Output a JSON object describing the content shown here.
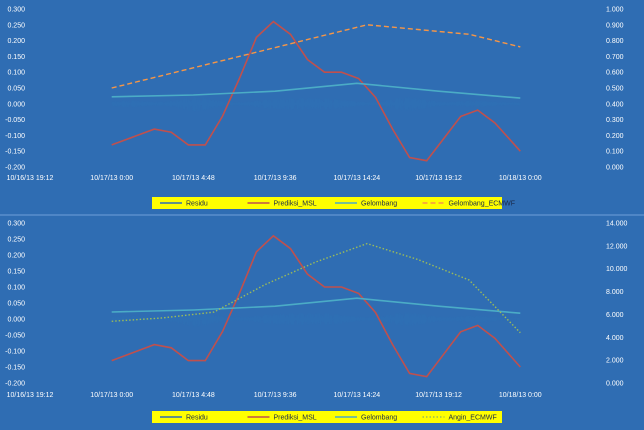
{
  "chart_data": [
    {
      "type": "line",
      "title": "",
      "xlabel": "",
      "ylabel": "",
      "x_ticks": [
        "10/16/13 19:12",
        "10/17/13 0:00",
        "10/17/13 4:48",
        "10/17/13 9:36",
        "10/17/13 14:24",
        "10/17/13 19:12",
        "10/18/13 0:00"
      ],
      "x_range": [
        "10/16/13 19:12",
        "10/18/13 4:48"
      ],
      "ylim_left": [
        -0.2,
        0.3
      ],
      "y_ticks_left": [
        "0.300",
        "0.250",
        "0.200",
        "0.150",
        "0.100",
        "0.050",
        "0.000",
        "-0.050",
        "-0.100",
        "-0.150",
        "-0.200"
      ],
      "ylim_right": [
        0,
        1
      ],
      "y_ticks_right": [
        "1.000",
        "0.900",
        "0.800",
        "0.700",
        "0.600",
        "0.500",
        "0.400",
        "0.300",
        "0.200",
        "0.100",
        "0.000"
      ],
      "grid": false,
      "legend_position": "bottom",
      "series": [
        {
          "name": "Residu",
          "color": "#2e6fb4",
          "axis": "left",
          "style": "noisy",
          "x": [
            "10/17/13 0:00",
            "10/18/13 0:00"
          ],
          "y": [
            0.0,
            0.0
          ]
        },
        {
          "name": "Prediksi_MSL",
          "color": "#c0504d",
          "axis": "left",
          "style": "solid",
          "x": [
            "10/17/13 0:00",
            "10/17/13 1:30",
            "10/17/13 2:30",
            "10/17/13 3:30",
            "10/17/13 4:30",
            "10/17/13 5:30",
            "10/17/13 6:30",
            "10/17/13 7:30",
            "10/17/13 8:30",
            "10/17/13 9:30",
            "10/17/13 10:30",
            "10/17/13 11:30",
            "10/17/13 12:30",
            "10/17/13 13:30",
            "10/17/13 14:30",
            "10/17/13 15:30",
            "10/17/13 16:30",
            "10/17/13 17:30",
            "10/17/13 18:30",
            "10/17/13 19:30",
            "10/17/13 20:30",
            "10/17/13 21:30",
            "10/17/13 22:30",
            "10/17/13 23:30",
            "10/18/13 0:00"
          ],
          "y": [
            -0.13,
            -0.1,
            -0.08,
            -0.09,
            -0.13,
            -0.13,
            -0.04,
            0.08,
            0.21,
            0.26,
            0.22,
            0.14,
            0.1,
            0.1,
            0.08,
            0.02,
            -0.08,
            -0.17,
            -0.18,
            -0.11,
            -0.04,
            -0.02,
            -0.06,
            -0.12,
            -0.15
          ]
        },
        {
          "name": "Gelombang",
          "color": "#4bacc6",
          "axis": "left",
          "style": "solid",
          "x": [
            "10/17/13 0:00",
            "10/17/13 4:48",
            "10/17/13 9:36",
            "10/17/13 14:24",
            "10/17/13 19:12",
            "10/18/13 0:00"
          ],
          "y": [
            0.022,
            0.028,
            0.04,
            0.065,
            0.04,
            0.018
          ]
        },
        {
          "name": "Gelombang_ECMWF",
          "color": "#f79646",
          "axis": "right",
          "style": "dashed",
          "x": [
            "10/17/13 0:00",
            "10/17/13 3:00",
            "10/17/13 6:00",
            "10/17/13 9:00",
            "10/17/13 12:00",
            "10/17/13 15:00",
            "10/17/13 18:00",
            "10/17/13 21:00",
            "10/18/13 0:00"
          ],
          "y": [
            0.5,
            0.58,
            0.66,
            0.74,
            0.82,
            0.9,
            0.87,
            0.84,
            0.76
          ]
        }
      ]
    },
    {
      "type": "line",
      "title": "",
      "xlabel": "",
      "ylabel": "",
      "x_ticks": [
        "10/16/13 19:12",
        "10/17/13 0:00",
        "10/17/13 4:48",
        "10/17/13 9:36",
        "10/17/13 14:24",
        "10/17/13 19:12",
        "10/18/13 0:00"
      ],
      "x_range": [
        "10/16/13 19:12",
        "10/18/13 4:48"
      ],
      "ylim_left": [
        -0.2,
        0.3
      ],
      "y_ticks_left": [
        "0.300",
        "0.250",
        "0.200",
        "0.150",
        "0.100",
        "0.050",
        "0.000",
        "-0.050",
        "-0.100",
        "-0.150",
        "-0.200"
      ],
      "ylim_right": [
        0,
        14
      ],
      "y_ticks_right": [
        "14.000",
        "12.000",
        "10.000",
        "8.000",
        "6.000",
        "4.000",
        "2.000",
        "0.000"
      ],
      "grid": false,
      "legend_position": "bottom",
      "series": [
        {
          "name": "Residu",
          "color": "#2e6fb4",
          "axis": "left",
          "style": "noisy",
          "x": [
            "10/17/13 0:00",
            "10/18/13 0:00"
          ],
          "y": [
            0.0,
            0.0
          ]
        },
        {
          "name": "Prediksi_MSL",
          "color": "#c0504d",
          "axis": "left",
          "style": "solid",
          "x": [
            "10/17/13 0:00",
            "10/17/13 1:30",
            "10/17/13 2:30",
            "10/17/13 3:30",
            "10/17/13 4:30",
            "10/17/13 5:30",
            "10/17/13 6:30",
            "10/17/13 7:30",
            "10/17/13 8:30",
            "10/17/13 9:30",
            "10/17/13 10:30",
            "10/17/13 11:30",
            "10/17/13 12:30",
            "10/17/13 13:30",
            "10/17/13 14:30",
            "10/17/13 15:30",
            "10/17/13 16:30",
            "10/17/13 17:30",
            "10/17/13 18:30",
            "10/17/13 19:30",
            "10/17/13 20:30",
            "10/17/13 21:30",
            "10/17/13 22:30",
            "10/17/13 23:30",
            "10/18/13 0:00"
          ],
          "y": [
            -0.13,
            -0.1,
            -0.08,
            -0.09,
            -0.13,
            -0.13,
            -0.04,
            0.08,
            0.21,
            0.26,
            0.22,
            0.14,
            0.1,
            0.1,
            0.08,
            0.02,
            -0.08,
            -0.17,
            -0.18,
            -0.11,
            -0.04,
            -0.02,
            -0.06,
            -0.12,
            -0.15
          ]
        },
        {
          "name": "Gelombang",
          "color": "#4bacc6",
          "axis": "left",
          "style": "solid",
          "x": [
            "10/17/13 0:00",
            "10/17/13 4:48",
            "10/17/13 9:36",
            "10/17/13 14:24",
            "10/17/13 19:12",
            "10/18/13 0:00"
          ],
          "y": [
            0.022,
            0.028,
            0.04,
            0.065,
            0.04,
            0.018
          ]
        },
        {
          "name": "Angin_ECMWF",
          "color": "#9bbb59",
          "axis": "right",
          "style": "dotted",
          "x": [
            "10/17/13 0:00",
            "10/17/13 3:00",
            "10/17/13 6:00",
            "10/17/13 9:00",
            "10/17/13 12:00",
            "10/17/13 15:00",
            "10/17/13 18:00",
            "10/17/13 21:00",
            "10/18/13 0:00"
          ],
          "y": [
            5.4,
            5.7,
            6.2,
            8.6,
            10.6,
            12.2,
            10.8,
            9.0,
            4.4
          ]
        }
      ]
    }
  ]
}
